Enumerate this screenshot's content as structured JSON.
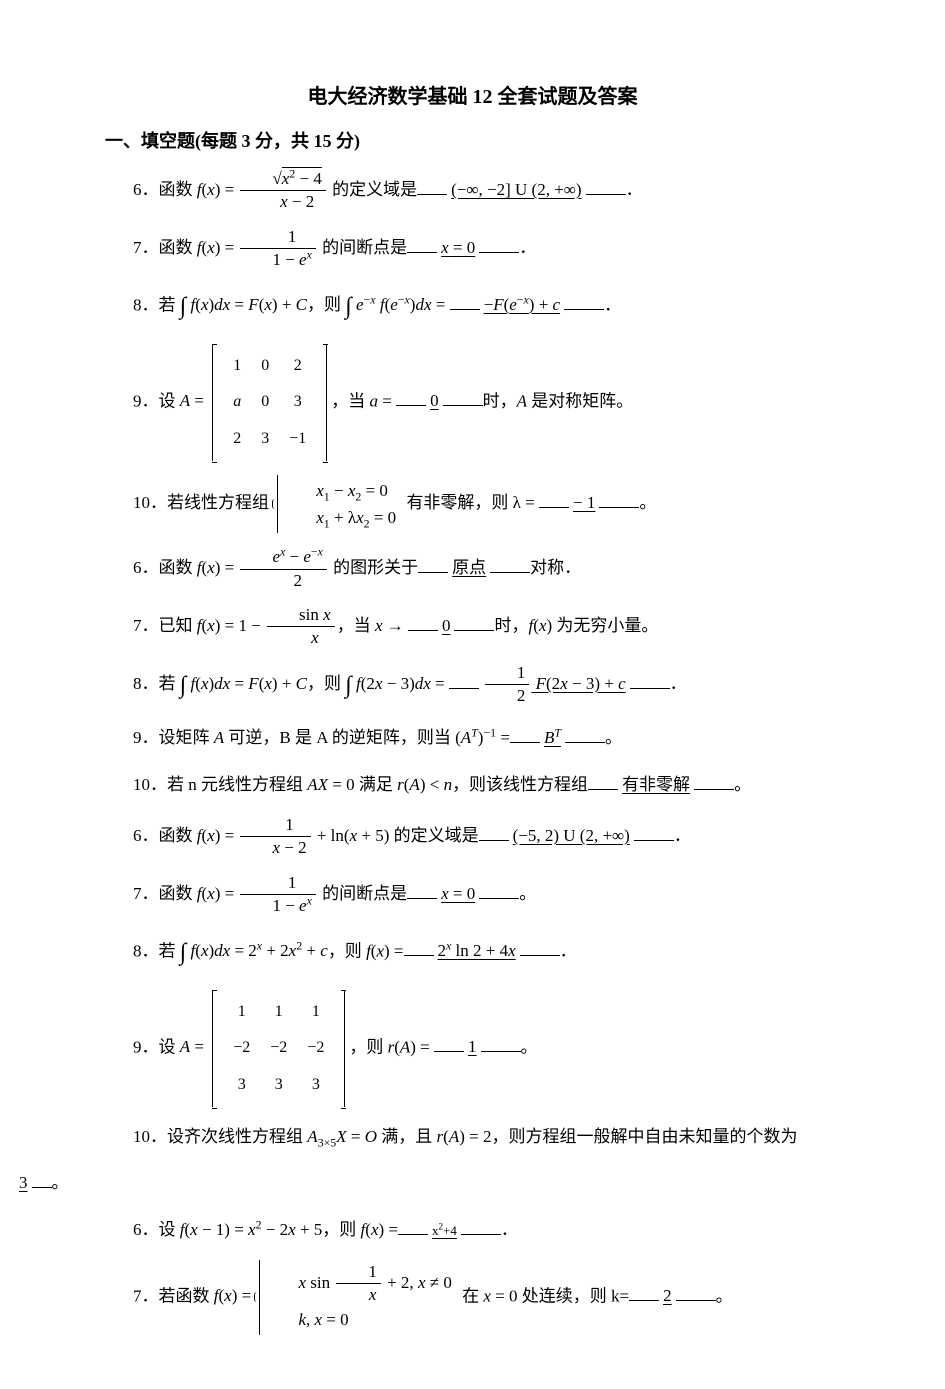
{
  "doc": {
    "title": "电大经济数学基础 12 全套试题及答案",
    "section": "一、填空题(每题 3 分，共 15 分)",
    "text_color": "#000000",
    "bg_color": "#ffffff",
    "body_fontsize": 17,
    "title_fontsize": 20
  },
  "items": [
    {
      "n": "6",
      "pre": "．函数 ",
      "expr_html": "<span class='ital'>f</span>(<span class='ital'>x</span>) = <span class='frac'><span class='num'>√<span class='sqrt'><span class='ital'>x</span><sup>2</sup> − 4</span></span><span class='den'><span class='ital'>x</span> − 2</span></span>",
      "mid": " 的定义域是",
      "ans": "(−∞, −2] U (2, +∞)",
      "post": "．"
    },
    {
      "n": "7",
      "pre": "．函数 ",
      "expr_html": "<span class='ital'>f</span>(<span class='ital'>x</span>) = <span class='frac'><span class='num'>1</span><span class='den'>1 − <span class='ital'>e</span><sup><span class='ital'>x</span></sup></span></span>",
      "mid": " 的间断点是",
      "ans": "<span class='ital'>x</span> = 0",
      "post": "．"
    },
    {
      "n": "8",
      "pre": "．若 ",
      "expr_html": "<span class='intsym'>∫</span> <span class='ital'>f</span>(<span class='ital'>x</span>)<span class='ital'>dx</span> = <span class='ital'>F</span>(<span class='ital'>x</span>) + <span class='ital'>C</span>",
      "mid": "，则 <span class='intsym'>∫</span> <span class='ital'>e</span><sup>−<span class='ital'>x</span></sup> <span class='ital'>f</span>(<span class='ital'>e</span><sup>−<span class='ital'>x</span></sup>)<span class='ital'>dx</span> = ",
      "ans": "−<span class='ital'>F</span>(<span class='ital'>e</span><sup>−<span class='ital'>x</span></sup>) + <span class='ital'>c</span>",
      "post": "．"
    },
    {
      "n": "9",
      "pre": "．设 ",
      "expr_html": "<span class='ital'>A</span> = <span class='matrix'><table><tr><td>1</td><td>0</td><td>2</td></tr><tr><td><span class='ital'>a</span></td><td>0</td><td>3</td></tr><tr><td>2</td><td>3</td><td>−1</td></tr></table></span>",
      "mid": "，当 <span class='ital'>a</span> = ",
      "ans": "0",
      "post": "时，<span class='ital'>A</span> 是对称矩阵。"
    },
    {
      "n": "10",
      "pre": "．若线性方程组 ",
      "expr_html": "<span class='cases'><span class='row'><span class='ital'>x</span><sub>1</sub> − <span class='ital'>x</span><sub>2</sub> = 0</span><span class='row'><span class='ital'>x</span><sub>1</sub> + λ<span class='ital'>x</span><sub>2</sub> = 0</span></span>",
      "mid": " 有非零解，则 λ = ",
      "ans": "− 1",
      "post": "。"
    },
    {
      "n": "6",
      "pre": "．函数 ",
      "expr_html": "<span class='ital'>f</span>(<span class='ital'>x</span>) = <span class='frac'><span class='num'><span class='ital'>e</span><sup><span class='ital'>x</span></sup> − <span class='ital'>e</span><sup>−<span class='ital'>x</span></sup></span><span class='den'>2</span></span>",
      "mid": " 的图形关于",
      "ans": "原点",
      "post": "对称．"
    },
    {
      "n": "7",
      "pre": "．已知 ",
      "expr_html": "<span class='ital'>f</span>(<span class='ital'>x</span>) = 1 − <span class='frac'><span class='num'>sin <span class='ital'>x</span></span><span class='den'><span class='ital'>x</span></span></span>",
      "mid": "，当 <span class='ital'>x</span> → ",
      "ans": "0",
      "post": "时，<span class='ital'>f</span>(<span class='ital'>x</span>) 为无穷小量。"
    },
    {
      "n": "8",
      "pre": "．若 ",
      "expr_html": "<span class='intsym'>∫</span> <span class='ital'>f</span>(<span class='ital'>x</span>)<span class='ital'>dx</span> = <span class='ital'>F</span>(<span class='ital'>x</span>) + <span class='ital'>C</span>",
      "mid": "，则 <span class='intsym'>∫</span> <span class='ital'>f</span>(2<span class='ital'>x</span> − 3)<span class='ital'>dx</span> = ",
      "ans": "<span class='frac'><span class='num'>1</span><span class='den'>2</span></span> <span class='ital'>F</span>(2<span class='ital'>x</span> − 3) + <span class='ital'>c</span>",
      "post": "．"
    },
    {
      "n": "9",
      "pre": "．设矩阵 <span class='ital'>A</span> 可逆，B 是 A 的逆矩阵，则当 ",
      "expr_html": "(<span class='ital'>A</span><sup><span class='ital'>T</span></sup>)<sup>−1</sup> =",
      "mid": "",
      "ans": "<span class='ital'>B</span><sup><span class='ital'>T</span></sup>",
      "post": "。"
    },
    {
      "n": "10",
      "pre": "．若 n 元线性方程组 ",
      "expr_html": "<span class='ital'>AX</span> = 0 满足 <span class='ital'>r</span>(<span class='ital'>A</span>) &lt; <span class='ital'>n</span>",
      "mid": "，则该线性方程组",
      "ans": "有非零解",
      "post": "。"
    },
    {
      "n": "6",
      "pre": "．函数 ",
      "expr_html": "<span class='ital'>f</span>(<span class='ital'>x</span>) = <span class='frac'><span class='num'>1</span><span class='den'><span class='ital'>x</span> − 2</span></span> + ln(<span class='ital'>x</span> + 5)",
      "mid": " 的定义域是",
      "ans": "(−5, 2) U (2, +∞)",
      "post": "．"
    },
    {
      "n": "7",
      "pre": "．函数 ",
      "expr_html": "<span class='ital'>f</span>(<span class='ital'>x</span>) = <span class='frac'><span class='num'>1</span><span class='den'>1 − <span class='ital'>e</span><sup><span class='ital'>x</span></sup></span></span>",
      "mid": " 的间断点是",
      "ans": "<span class='ital'>x</span> = 0",
      "post": "。"
    },
    {
      "n": "8",
      "pre": "．若 ",
      "expr_html": "<span class='intsym'>∫</span> <span class='ital'>f</span>(<span class='ital'>x</span>)<span class='ital'>dx</span> = 2<sup><span class='ital'>x</span></sup> + 2<span class='ital'>x</span><sup>2</sup> + <span class='ital'>c</span>",
      "mid": "，则 <span class='ital'>f</span>(<span class='ital'>x</span>) =",
      "ans": "2<sup><span class='ital'>x</span></sup> ln 2 + 4<span class='ital'>x</span>",
      "post": "．"
    },
    {
      "n": "9",
      "pre": "．设 ",
      "expr_html": "<span class='ital'>A</span> = <span class='matrix'><table><tr><td>1</td><td>1</td><td>1</td></tr><tr><td>−2</td><td>−2</td><td>−2</td></tr><tr><td>3</td><td>3</td><td>3</td></tr></table></span>",
      "mid": "，则 <span class='ital'>r</span>(<span class='ital'>A</span>) = ",
      "ans": "1",
      "post": "。"
    },
    {
      "n": "10",
      "pre": "．设齐次线性方程组 ",
      "expr_html": "<span class='ital'>A</span><sub>3×5</sub><span class='ital'>X</span> = <span class='ital'>O</span> 满，且 <span class='ital'>r</span>(<span class='ital'>A</span>) = 2",
      "mid": "，则方程组一般解中自由未知量的个数为",
      "ans": "",
      "post": ""
    },
    {
      "n": "6",
      "pre": "．设 ",
      "expr_html": "<span class='ital'>f</span>(<span class='ital'>x</span> − 1) = <span class='ital'>x</span><sup>2</sup> − 2<span class='ital'>x</span> + 5",
      "mid": "，则 <span class='ital'>f</span>(<span class='ital'>x</span>) =",
      "ans": "<span class='small-ans'>x<sup>2</sup>+4</span>",
      "post": "．"
    },
    {
      "n": "7",
      "pre": "．若函数 ",
      "expr_html": "<span class='ital'>f</span>(<span class='ital'>x</span>) = <span class='cases'><span class='row'><span class='ital'>x</span> sin <span class='frac'><span class='num'>1</span><span class='den'><span class='ital'>x</span></span></span> + 2, <span class='ital'>x</span> ≠ 0</span><span class='row'><span class='ital'>k</span>, <span class='ital'>x</span> = 0</span></span>",
      "mid": " 在 <span class='ital'>x</span> = 0 处连续，则 k=",
      "ans": "2",
      "post": "。"
    }
  ],
  "trailing_ans": "3",
  "trailing_post": "。"
}
